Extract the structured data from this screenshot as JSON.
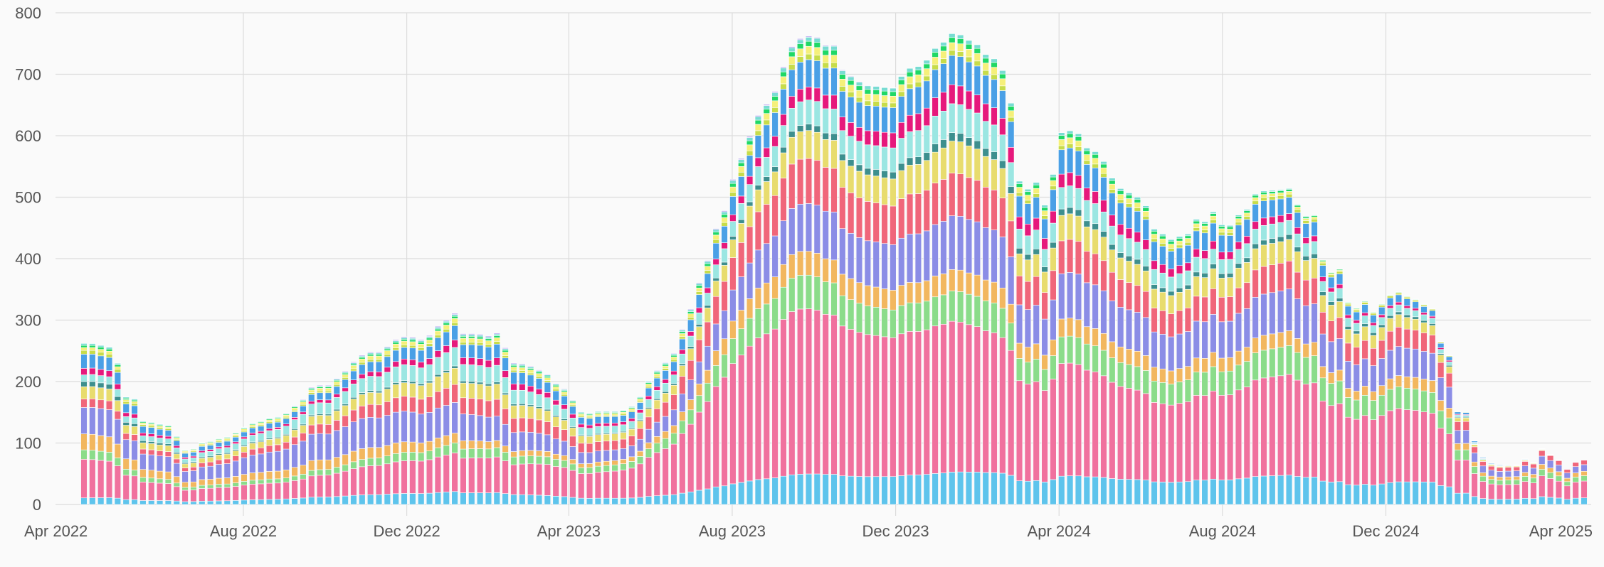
{
  "chart_data": {
    "type": "bar",
    "stacked": true,
    "x_axis": {
      "type": "date",
      "start": "2022-04-04",
      "end": "2025-04-28",
      "ticks": [
        {
          "date": "2022-04-01",
          "label": "Apr 2022"
        },
        {
          "date": "2022-08-01",
          "label": "Aug 2022"
        },
        {
          "date": "2022-12-01",
          "label": "Dec 2022"
        },
        {
          "date": "2023-04-01",
          "label": "Apr 2023"
        },
        {
          "date": "2023-08-01",
          "label": "Aug 2023"
        },
        {
          "date": "2023-12-01",
          "label": "Dec 2023"
        },
        {
          "date": "2024-04-01",
          "label": "Apr 2024"
        },
        {
          "date": "2024-08-01",
          "label": "Aug 2024"
        },
        {
          "date": "2024-12-01",
          "label": "Dec 2024"
        },
        {
          "date": "2025-04-01",
          "label": "Apr 2025"
        }
      ]
    },
    "y_axis": {
      "min": 0,
      "max": 800,
      "ticks": [
        0,
        100,
        200,
        300,
        400,
        500,
        600,
        700,
        800
      ]
    },
    "grid": true,
    "legend": "top (mostly cut off)",
    "series_colors": [
      "#5ec4ec",
      "#f0719e",
      "#8bdc8a",
      "#f2b75f",
      "#8b8de6",
      "#f0667a",
      "#e8dc6e",
      "#3d8f8e",
      "#9be6e2",
      "#e6197c",
      "#4aa0e6",
      "#c7dc4a",
      "#f5f07a",
      "#1fd866",
      "#78dcd2",
      "#b9a8f0"
    ],
    "series_shares": [
      [
        0.035,
        0.205,
        0.05,
        0.085,
        0.14,
        0.045,
        0.065,
        0.028,
        0.035,
        0.035,
        0.075,
        0.02,
        0.015,
        0.012,
        0.01,
        0.0
      ],
      [
        0.06,
        0.175,
        0.045,
        0.085,
        0.225,
        0.075,
        0.07,
        0.012,
        0.09,
        0.022,
        0.055,
        0.015,
        0.022,
        0.01,
        0.008,
        0.006
      ],
      [
        0.07,
        0.21,
        0.055,
        0.038,
        0.135,
        0.1,
        0.09,
        0.012,
        0.098,
        0.045,
        0.082,
        0.015,
        0.022,
        0.012,
        0.01,
        0.006
      ],
      [
        0.07,
        0.41,
        0.085,
        0.06,
        0.105,
        0.11,
        0.06,
        0.012,
        0.05,
        0.022,
        0.062,
        0.014,
        0.018,
        0.012,
        0.01,
        0.004
      ],
      [
        0.075,
        0.355,
        0.07,
        0.05,
        0.125,
        0.1,
        0.075,
        0.02,
        0.068,
        0.045,
        0.068,
        0.012,
        0.018,
        0.012,
        0.009,
        0.0
      ],
      [
        0.09,
        0.315,
        0.085,
        0.055,
        0.14,
        0.095,
        0.075,
        0.018,
        0.06,
        0.035,
        0.075,
        0.012,
        0.018,
        0.012,
        0.008,
        0.0
      ],
      [
        0.1,
        0.34,
        0.1,
        0.045,
        0.135,
        0.09,
        0.068,
        0.015,
        0.038,
        0.015,
        0.04,
        0.01,
        0.003,
        0.003,
        0.0,
        0.0
      ],
      [
        0.15,
        0.38,
        0.12,
        0.1,
        0.15,
        0.1,
        0.0,
        0.0,
        0.0,
        0.0,
        0.0,
        0.0,
        0.0,
        0.0,
        0.0,
        0.0
      ]
    ],
    "totals": [
      262,
      262,
      259,
      256,
      230,
      175,
      172,
      136,
      134,
      131,
      129,
      111,
      89,
      91,
      101,
      103,
      108,
      110,
      117,
      126,
      133,
      136,
      141,
      143,
      149,
      161,
      171,
      191,
      194,
      194,
      205,
      217,
      232,
      243,
      248,
      248,
      257,
      268,
      273,
      272,
      268,
      275,
      290,
      300,
      311,
      278,
      278,
      277,
      274,
      279,
      255,
      230,
      229,
      225,
      219,
      212,
      197,
      188,
      170,
      151,
      149,
      152,
      152,
      152,
      154,
      160,
      176,
      201,
      218,
      231,
      246,
      285,
      318,
      361,
      397,
      449,
      478,
      529,
      563,
      599,
      633,
      651,
      672,
      712,
      745,
      758,
      762,
      760,
      747,
      747,
      707,
      697,
      688,
      682,
      681,
      679,
      678,
      697,
      710,
      713,
      723,
      742,
      752,
      766,
      764,
      755,
      748,
      732,
      725,
      706,
      653,
      526,
      513,
      524,
      487,
      537,
      605,
      608,
      603,
      580,
      574,
      558,
      531,
      514,
      507,
      500,
      486,
      448,
      440,
      431,
      436,
      440,
      464,
      460,
      476,
      455,
      454,
      471,
      480,
      505,
      510,
      511,
      512,
      514,
      488,
      469,
      471,
      398,
      378,
      383,
      329,
      319,
      331,
      313,
      326,
      341,
      346,
      339,
      334,
      326,
      319,
      265,
      243,
      152,
      151,
      104,
      77,
      68,
      65,
      65,
      65,
      74,
      69,
      91,
      82,
      73,
      58,
      69,
      72
    ]
  }
}
